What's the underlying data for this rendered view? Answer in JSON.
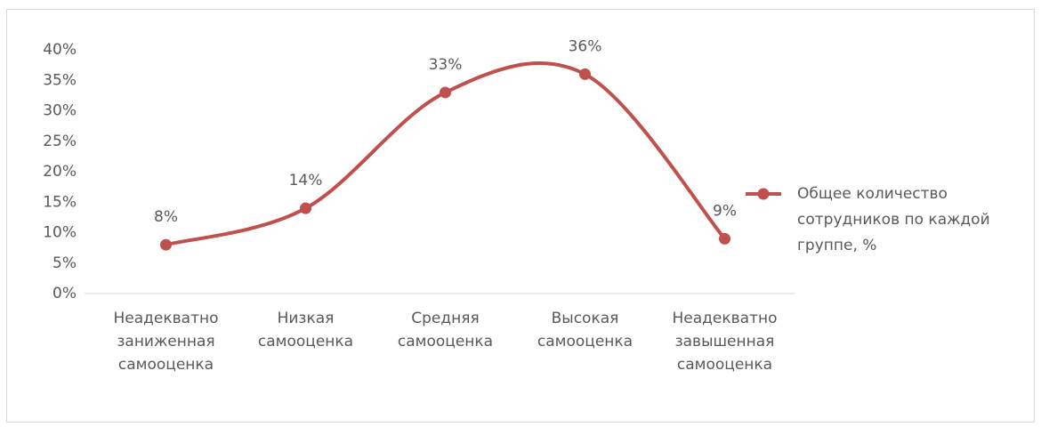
{
  "chart_data": {
    "type": "line",
    "categories": [
      "Неадекватно заниженная самооценка",
      "Низкая самооценка",
      "Средняя самооценка",
      "Высокая самооценка",
      "Неадекватно завышенная самооценка"
    ],
    "series": [
      {
        "name": "Общее количество сотрудников по каждой группе, %",
        "color": "#c0504d",
        "values": [
          8,
          14,
          33,
          36,
          9
        ],
        "value_labels": [
          "8%",
          "14%",
          "33%",
          "36%",
          "9%"
        ]
      }
    ],
    "ylim": [
      0,
      40
    ],
    "yticks": [
      {
        "value": 0,
        "label": "0%"
      },
      {
        "value": 5,
        "label": "5%"
      },
      {
        "value": 10,
        "label": "10%"
      },
      {
        "value": 15,
        "label": "15%"
      },
      {
        "value": 20,
        "label": "20%"
      },
      {
        "value": 25,
        "label": "25%"
      },
      {
        "value": 30,
        "label": "30%"
      },
      {
        "value": 35,
        "label": "35%"
      },
      {
        "value": 40,
        "label": "40%"
      }
    ],
    "smooth": true,
    "grid": false,
    "legend": "right"
  }
}
